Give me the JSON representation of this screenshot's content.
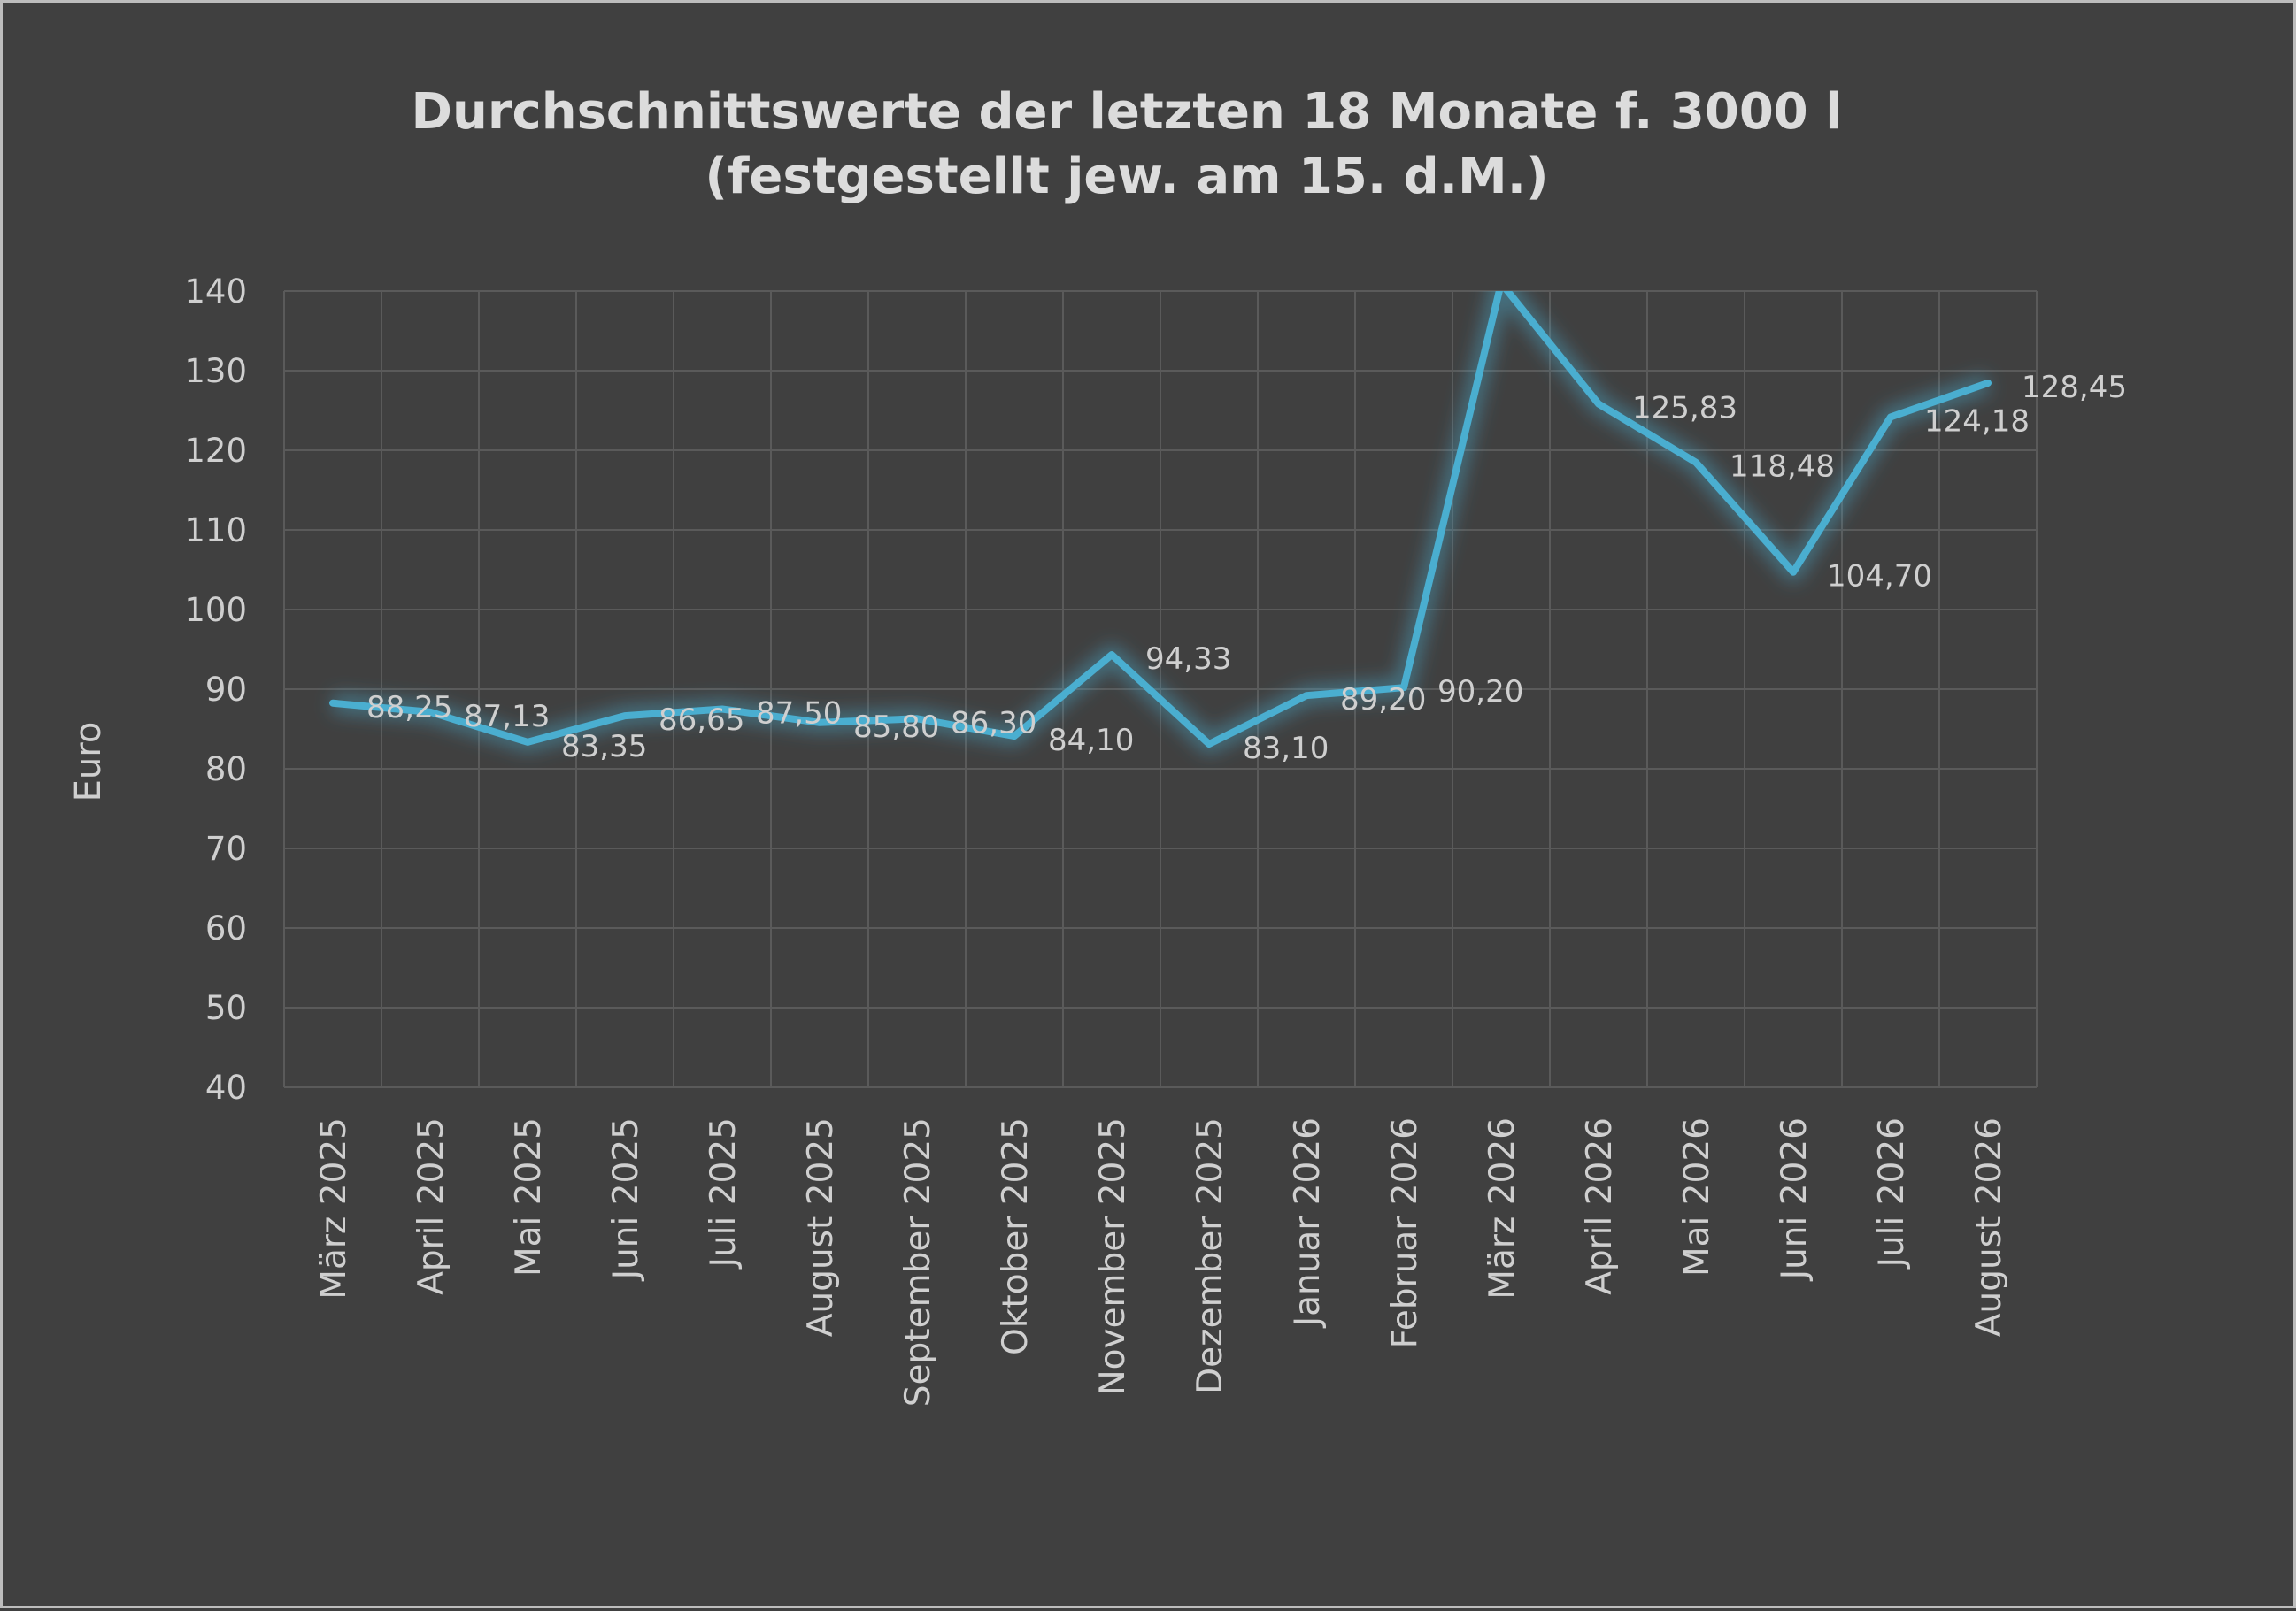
{
  "chart_data": {
    "type": "line",
    "title": "Durchschnittswerte der letzten 18 Monate f. 3000 l",
    "subtitle": "(festgestellt jew. am 15. d.M.)",
    "xlabel": "",
    "ylabel": "Euro",
    "ylim": [
      40,
      140
    ],
    "ytick_step": 10,
    "grid": true,
    "line_color": "#4aaed0",
    "categories": [
      "März 2025",
      "April 2025",
      "Mai 2025",
      "Juni 2025",
      "Juli 2025",
      "August 2025",
      "September 2025",
      "Oktober 2025",
      "November 2025",
      "Dezember 2025",
      "Januar 2026",
      "Februar 2026",
      "März 2026",
      "April 2026",
      "Mai 2026",
      "Juni 2026",
      "Juli 2026",
      "August 2026"
    ],
    "values": [
      88.25,
      87.13,
      83.35,
      86.65,
      87.5,
      85.8,
      86.3,
      84.1,
      94.33,
      83.1,
      89.2,
      90.2,
      141,
      125.83,
      118.48,
      104.7,
      124.18,
      128.45
    ],
    "data_labels": [
      "88,25",
      "87,13",
      "83,35",
      "86,65",
      "87,50",
      "85,80",
      "86,30",
      "84,10",
      "94,33",
      "83,10",
      "89,20",
      "90,20",
      "",
      "125,83",
      "118,48",
      "104,70",
      "124,18",
      "128,45"
    ]
  }
}
